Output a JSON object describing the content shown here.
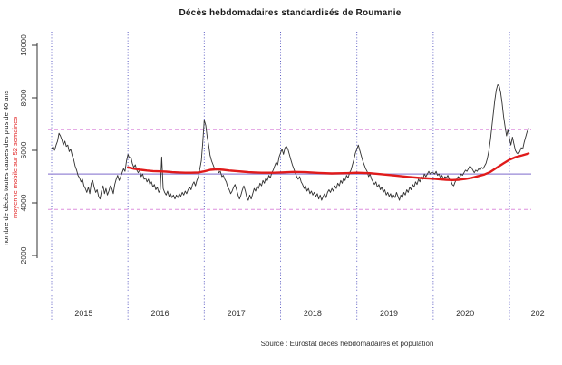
{
  "chart_data": {
    "type": "line",
    "title": "Décès hebdomadaires standardisés de Roumanie",
    "source": "Source : Eurostat décès hebdomadaires et population",
    "ylabel": "nombre de décès toutes causes des plus de 40 ans",
    "ylabel2": "moyenne mobile sur 52 semaines",
    "ylim": [
      2000,
      10000
    ],
    "y_ticks": [
      2000,
      4000,
      6000,
      8000,
      10000
    ],
    "x_range_years": [
      2015,
      2021.25
    ],
    "year_gridlines": [
      2015,
      2016,
      2017,
      2018,
      2019,
      2020,
      2021
    ],
    "x_ticks": [
      {
        "label": "2015",
        "t": 2015.42
      },
      {
        "label": "2016",
        "t": 2016.42
      },
      {
        "label": "2017",
        "t": 2017.42
      },
      {
        "label": "2018",
        "t": 2018.42
      },
      {
        "label": "2019",
        "t": 2019.42
      },
      {
        "label": "2020",
        "t": 2020.42
      },
      {
        "label": "202",
        "t": 2021.37
      }
    ],
    "reference_lines": {
      "mean_solid": 5100,
      "dashed_upper": 6800,
      "dashed_lower": 3750
    },
    "legend": [
      {
        "name": "décès hebdomadaires",
        "color": "#303030"
      },
      {
        "name": "moyenne mobile sur 52 semaines",
        "color": "#e01b1b"
      }
    ],
    "colors": {
      "weekly": "#303030",
      "average": "#e01b1b",
      "mean_line": "#9787d6",
      "band_lines": "#dd8fdd",
      "gridline": "#5f5fc4",
      "axis": "#333333",
      "tick_text": "#333333"
    },
    "weekly_series": {
      "name": "décès hebdomadaires (toutes causes, plus de 40 ans)",
      "start_year": 2015,
      "points_per_year": 52,
      "values": [
        6050,
        6150,
        6000,
        6200,
        6350,
        6650,
        6550,
        6400,
        6200,
        6350,
        6150,
        6200,
        5950,
        6050,
        5800,
        5650,
        5400,
        5250,
        5050,
        4950,
        4800,
        4900,
        4650,
        4550,
        4400,
        4600,
        4350,
        4750,
        4850,
        4600,
        4400,
        4500,
        4250,
        4150,
        4450,
        4650,
        4350,
        4550,
        4300,
        4450,
        4650,
        4550,
        4350,
        4700,
        4900,
        5050,
        4850,
        5000,
        5150,
        5300,
        5200,
        5600,
        5850,
        5700,
        5750,
        5500,
        5350,
        5450,
        5250,
        5150,
        5250,
        5000,
        5100,
        4900,
        4950,
        4800,
        4900,
        4700,
        4800,
        4600,
        4700,
        4500,
        4600,
        4400,
        4500,
        5750,
        4550,
        4400,
        4300,
        4450,
        4250,
        4350,
        4200,
        4300,
        4150,
        4300,
        4200,
        4350,
        4250,
        4400,
        4300,
        4450,
        4350,
        4500,
        4600,
        4500,
        4700,
        4800,
        4650,
        4850,
        5000,
        5300,
        5600,
        6300,
        7150,
        6950,
        6500,
        6200,
        5800,
        5600,
        5450,
        5300,
        5250,
        5300,
        5150,
        5200,
        5000,
        5050,
        4900,
        4800,
        4600,
        4500,
        4350,
        4450,
        4600,
        4700,
        4500,
        4300,
        4150,
        4300,
        4500,
        4650,
        4450,
        4200,
        4100,
        4300,
        4150,
        4350,
        4550,
        4450,
        4650,
        4550,
        4750,
        4650,
        4850,
        4750,
        4950,
        4850,
        5050,
        4950,
        5150,
        5250,
        5400,
        5550,
        5450,
        5750,
        5900,
        6050,
        5850,
        6100,
        6150,
        6050,
        5850,
        5650,
        5450,
        5300,
        5150,
        5000,
        4900,
        5000,
        4800,
        4700,
        4550,
        4650,
        4450,
        4550,
        4350,
        4450,
        4300,
        4400,
        4250,
        4350,
        4150,
        4300,
        4100,
        4250,
        4350,
        4200,
        4400,
        4500,
        4400,
        4550,
        4450,
        4650,
        4550,
        4750,
        4650,
        4850,
        4750,
        4950,
        4850,
        5050,
        4950,
        5150,
        5250,
        5450,
        5650,
        5900,
        6050,
        6200,
        6000,
        5800,
        5600,
        5450,
        5300,
        5200,
        5000,
        5100,
        4900,
        4800,
        4700,
        4800,
        4600,
        4700,
        4500,
        4600,
        4400,
        4500,
        4300,
        4400,
        4250,
        4350,
        4150,
        4300,
        4200,
        4400,
        4250,
        4100,
        4300,
        4200,
        4400,
        4300,
        4500,
        4400,
        4600,
        4500,
        4700,
        4600,
        4800,
        4700,
        4900,
        4800,
        5000,
        4900,
        5100,
        5000,
        5100,
        5200,
        5100,
        5150,
        5150,
        5100,
        5200,
        5050,
        5100,
        4950,
        5050,
        4900,
        5000,
        4950,
        5050,
        4900,
        4850,
        4700,
        4650,
        4800,
        4900,
        5000,
        4950,
        5100,
        5050,
        5150,
        5250,
        5200,
        5300,
        5400,
        5350,
        5250,
        5150,
        5250,
        5200,
        5300,
        5250,
        5350,
        5300,
        5400,
        5500,
        5700,
        6000,
        6400,
        6900,
        7400,
        7900,
        8300,
        8500,
        8450,
        8200,
        7800,
        7300,
        6900,
        6550,
        6800,
        6450,
        6200,
        6500,
        6250,
        6000,
        5900,
        5860,
        5950,
        6100,
        6050,
        6300,
        6500,
        6700,
        6850
      ]
    },
    "moving_average_series": {
      "name": "moyenne mobile sur 52 semaines",
      "points": [
        [
          2016.0,
          5350
        ],
        [
          2016.08,
          5300
        ],
        [
          2016.17,
          5260
        ],
        [
          2016.25,
          5230
        ],
        [
          2016.33,
          5210
        ],
        [
          2016.42,
          5200
        ],
        [
          2016.5,
          5190
        ],
        [
          2016.58,
          5170
        ],
        [
          2016.67,
          5160
        ],
        [
          2016.75,
          5150
        ],
        [
          2016.83,
          5150
        ],
        [
          2016.92,
          5160
        ],
        [
          2017.0,
          5200
        ],
        [
          2017.08,
          5260
        ],
        [
          2017.17,
          5280
        ],
        [
          2017.25,
          5260
        ],
        [
          2017.33,
          5230
        ],
        [
          2017.42,
          5210
        ],
        [
          2017.5,
          5190
        ],
        [
          2017.58,
          5170
        ],
        [
          2017.67,
          5160
        ],
        [
          2017.75,
          5150
        ],
        [
          2017.83,
          5150
        ],
        [
          2017.92,
          5150
        ],
        [
          2018.0,
          5160
        ],
        [
          2018.17,
          5180
        ],
        [
          2018.33,
          5170
        ],
        [
          2018.5,
          5140
        ],
        [
          2018.67,
          5120
        ],
        [
          2018.83,
          5130
        ],
        [
          2019.0,
          5150
        ],
        [
          2019.17,
          5130
        ],
        [
          2019.33,
          5090
        ],
        [
          2019.5,
          5040
        ],
        [
          2019.67,
          4990
        ],
        [
          2019.83,
          4950
        ],
        [
          2020.0,
          4920
        ],
        [
          2020.08,
          4900
        ],
        [
          2020.17,
          4880
        ],
        [
          2020.25,
          4870
        ],
        [
          2020.33,
          4880
        ],
        [
          2020.42,
          4910
        ],
        [
          2020.5,
          4950
        ],
        [
          2020.58,
          5010
        ],
        [
          2020.67,
          5080
        ],
        [
          2020.75,
          5180
        ],
        [
          2020.83,
          5330
        ],
        [
          2020.92,
          5500
        ],
        [
          2021.0,
          5640
        ],
        [
          2021.08,
          5740
        ],
        [
          2021.17,
          5810
        ],
        [
          2021.25,
          5880
        ]
      ]
    }
  }
}
